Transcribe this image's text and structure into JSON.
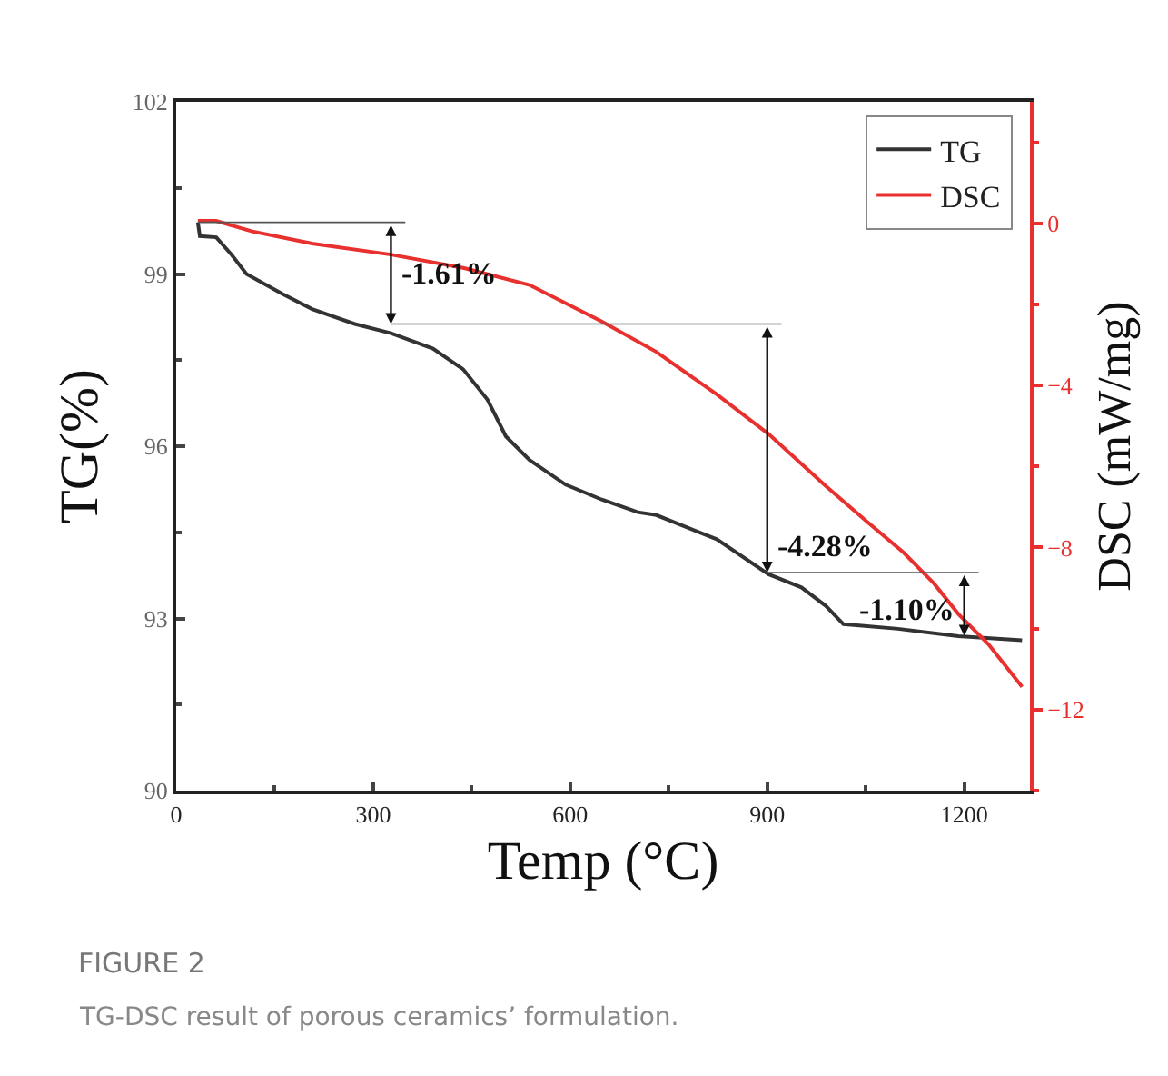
{
  "chart_data": {
    "type": "line",
    "xlabel": "Temp (°C)",
    "ylabel": "TG(%)",
    "y2label": "DSC (mW/mg)",
    "xlim": [
      0,
      1300
    ],
    "xticks": [
      0,
      300,
      600,
      900,
      1200
    ],
    "ylim": [
      90,
      102
    ],
    "yticks": [
      90,
      93,
      96,
      99,
      102
    ],
    "y2lim": [
      -14,
      3
    ],
    "y2ticks": [
      -12,
      -8,
      -4,
      0
    ],
    "grid": false,
    "legend": "top right",
    "line_style": "solid",
    "marker": "none",
    "series": [
      {
        "name": "TG",
        "color": "#333333",
        "x": [
          33,
          36,
          61,
          84,
          107,
          162,
          207,
          272,
          327,
          391,
          437,
          474,
          502,
          538,
          593,
          648,
          703,
          731,
          823,
          902,
          952,
          989,
          1016,
          1099,
          1191,
          1288
        ],
        "values": [
          99.9,
          99.66,
          99.64,
          99.34,
          99.0,
          98.65,
          98.39,
          98.13,
          97.97,
          97.7,
          97.34,
          96.81,
          96.17,
          95.76,
          95.33,
          95.07,
          94.85,
          94.8,
          94.38,
          93.77,
          93.54,
          93.22,
          92.9,
          92.82,
          92.69,
          92.62
        ]
      },
      {
        "name": "DSC",
        "color": "#e8312f",
        "axis": "y2",
        "x": [
          33,
          61,
          116,
          207,
          327,
          437,
          538,
          648,
          731,
          823,
          902,
          989,
          1053,
          1108,
          1154,
          1191,
          1237,
          1288
        ],
        "values": [
          0.06,
          0.06,
          -0.2,
          -0.5,
          -0.77,
          -1.1,
          -1.52,
          -2.42,
          -3.17,
          -4.22,
          -5.2,
          -6.48,
          -7.38,
          -8.13,
          -8.89,
          -9.64,
          -10.39,
          -11.44
        ]
      }
    ],
    "annotations": [
      {
        "text": "-1.61%",
        "x": 327,
        "y": 98.13
      },
      {
        "text": "-4.28%",
        "x": 900,
        "y": 93.8
      },
      {
        "text": "-1.10%",
        "x": 1200,
        "y": 92.7
      },
      "FIGURE 2",
      "TG-DSC result of porous ceramics’ formulation."
    ]
  }
}
